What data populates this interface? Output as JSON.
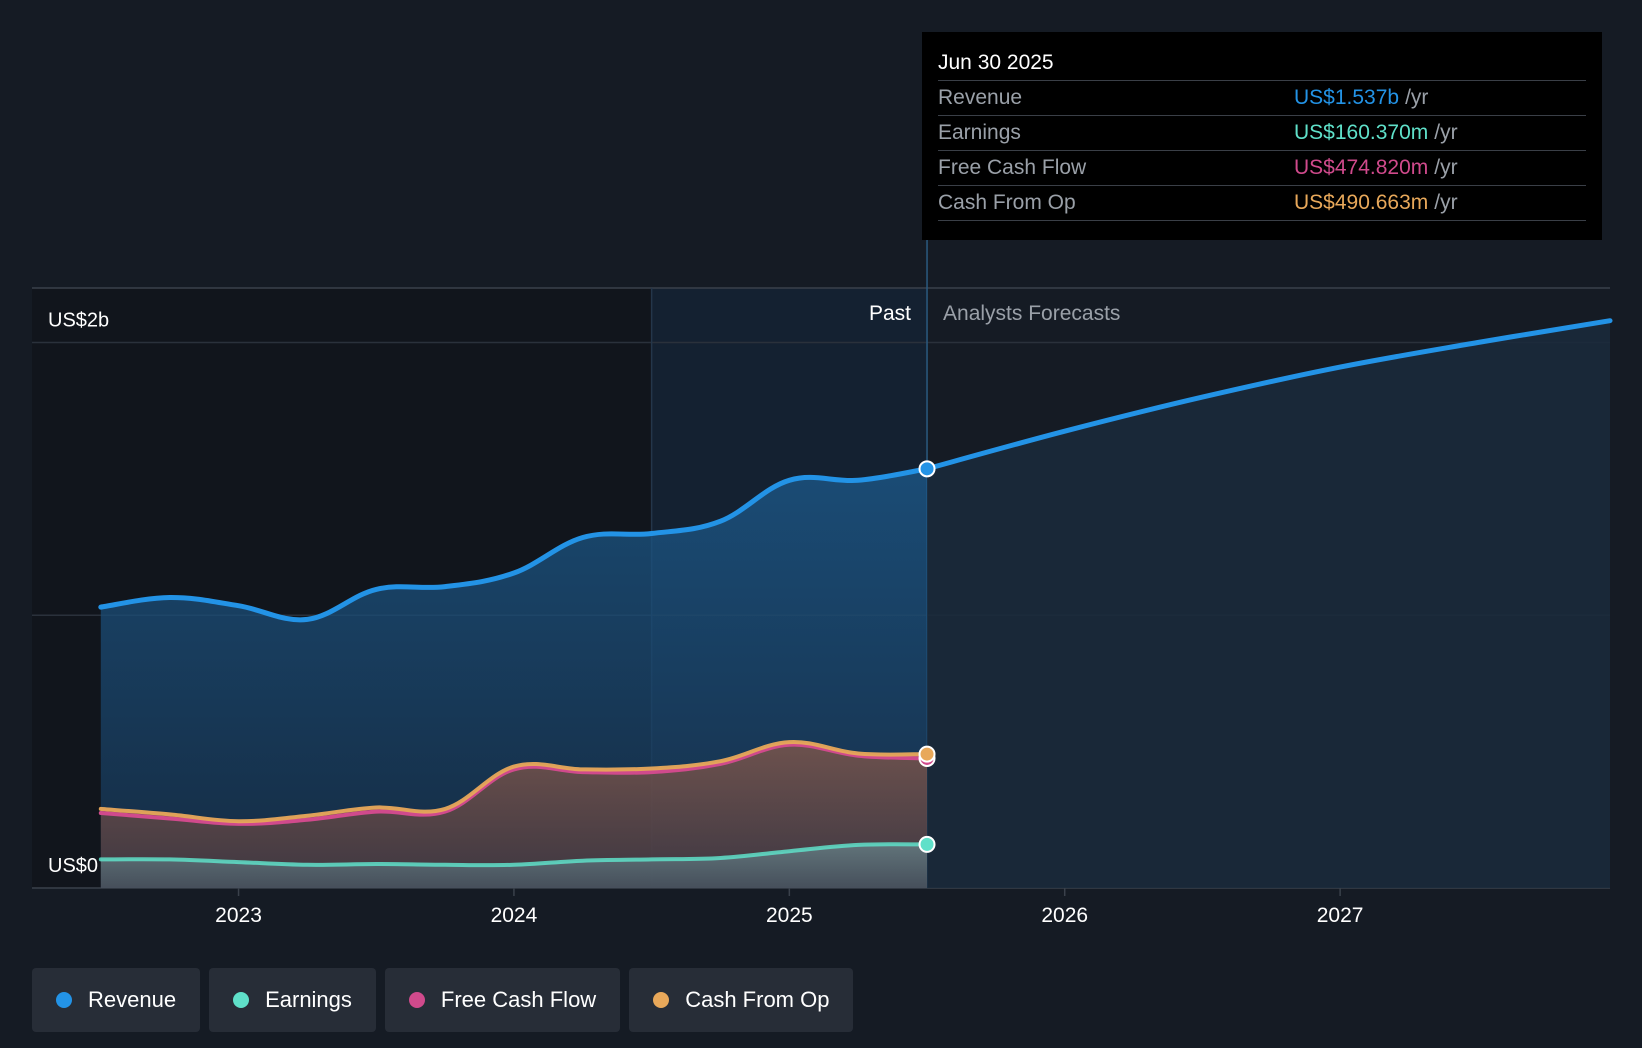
{
  "chart_data": {
    "type": "line",
    "x_unit": "year",
    "ylabel": "",
    "ylim": [
      0,
      2.2
    ],
    "y_unit": "US$ billions",
    "y_axis_labels": [
      "US$2b",
      "US$0"
    ],
    "x_tick_labels": [
      "2023",
      "2024",
      "2025",
      "2026",
      "2027"
    ],
    "x_ticks": [
      2023,
      2024,
      2025,
      2026,
      2027
    ],
    "xlim": [
      2022.25,
      2027.98
    ],
    "past_label": "Past",
    "forecast_label": "Analysts Forecasts",
    "past_end": 2025.5,
    "shade_start": 2024.5,
    "series": [
      {
        "name": "Revenue",
        "color": "#2393e6",
        "points": [
          [
            2022.5,
            1.03
          ],
          [
            2022.75,
            1.065
          ],
          [
            2023.0,
            1.035
          ],
          [
            2023.25,
            0.985
          ],
          [
            2023.5,
            1.095
          ],
          [
            2023.75,
            1.105
          ],
          [
            2024.0,
            1.155
          ],
          [
            2024.25,
            1.285
          ],
          [
            2024.5,
            1.3
          ],
          [
            2024.75,
            1.345
          ],
          [
            2025.0,
            1.495
          ],
          [
            2025.25,
            1.495
          ],
          [
            2025.5,
            1.537
          ]
        ],
        "forecast": [
          [
            2025.5,
            1.537
          ],
          [
            2026.0,
            1.675
          ],
          [
            2026.5,
            1.8
          ],
          [
            2027.0,
            1.91
          ],
          [
            2027.5,
            2.0
          ],
          [
            2027.98,
            2.08
          ]
        ]
      },
      {
        "name": "Earnings",
        "color": "#5fe0c9",
        "points": [
          [
            2022.5,
            0.105
          ],
          [
            2022.75,
            0.105
          ],
          [
            2023.0,
            0.095
          ],
          [
            2023.25,
            0.085
          ],
          [
            2023.5,
            0.088
          ],
          [
            2023.75,
            0.085
          ],
          [
            2024.0,
            0.085
          ],
          [
            2024.25,
            0.1
          ],
          [
            2024.5,
            0.105
          ],
          [
            2024.75,
            0.11
          ],
          [
            2025.0,
            0.135
          ],
          [
            2025.25,
            0.158
          ],
          [
            2025.5,
            0.16
          ]
        ]
      },
      {
        "name": "Free Cash Flow",
        "color": "#d04a8c",
        "points": [
          [
            2022.5,
            0.275
          ],
          [
            2022.75,
            0.255
          ],
          [
            2023.0,
            0.235
          ],
          [
            2023.25,
            0.25
          ],
          [
            2023.5,
            0.28
          ],
          [
            2023.75,
            0.28
          ],
          [
            2024.0,
            0.435
          ],
          [
            2024.25,
            0.425
          ],
          [
            2024.5,
            0.425
          ],
          [
            2024.75,
            0.455
          ],
          [
            2025.0,
            0.525
          ],
          [
            2025.25,
            0.485
          ],
          [
            2025.5,
            0.475
          ]
        ]
      },
      {
        "name": "Cash From Op",
        "color": "#e8a85a",
        "points": [
          [
            2022.5,
            0.29
          ],
          [
            2022.75,
            0.27
          ],
          [
            2023.0,
            0.245
          ],
          [
            2023.25,
            0.265
          ],
          [
            2023.5,
            0.295
          ],
          [
            2023.75,
            0.29
          ],
          [
            2024.0,
            0.445
          ],
          [
            2024.25,
            0.435
          ],
          [
            2024.5,
            0.438
          ],
          [
            2024.75,
            0.465
          ],
          [
            2025.0,
            0.535
          ],
          [
            2025.25,
            0.493
          ],
          [
            2025.5,
            0.491
          ]
        ]
      }
    ]
  },
  "tooltip": {
    "date": "Jun 30 2025",
    "unit": "/yr",
    "rows": [
      {
        "label": "Revenue",
        "value": "US$1.537b",
        "color": "#2393e6"
      },
      {
        "label": "Earnings",
        "value": "US$160.370m",
        "color": "#5fe0c9"
      },
      {
        "label": "Free Cash Flow",
        "value": "US$474.820m",
        "color": "#d04a8c"
      },
      {
        "label": "Cash From Op",
        "value": "US$490.663m",
        "color": "#e8a85a"
      }
    ]
  },
  "legend": [
    {
      "label": "Revenue",
      "color": "#2393e6"
    },
    {
      "label": "Earnings",
      "color": "#5fe0c9"
    },
    {
      "label": "Free Cash Flow",
      "color": "#d04a8c"
    },
    {
      "label": "Cash From Op",
      "color": "#e8a85a"
    }
  ]
}
